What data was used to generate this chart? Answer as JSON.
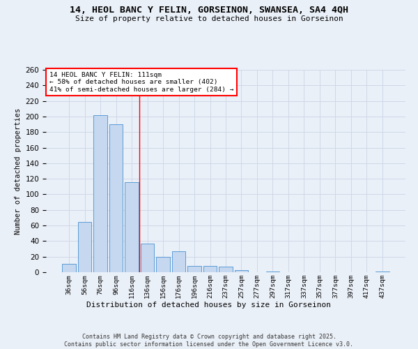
{
  "title_line1": "14, HEOL BANC Y FELIN, GORSEINON, SWANSEA, SA4 4QH",
  "title_line2": "Size of property relative to detached houses in Gorseinon",
  "xlabel": "Distribution of detached houses by size in Gorseinon",
  "ylabel": "Number of detached properties",
  "categories": [
    "36sqm",
    "56sqm",
    "76sqm",
    "96sqm",
    "116sqm",
    "136sqm",
    "156sqm",
    "176sqm",
    "196sqm",
    "216sqm",
    "237sqm",
    "257sqm",
    "277sqm",
    "297sqm",
    "317sqm",
    "337sqm",
    "357sqm",
    "377sqm",
    "397sqm",
    "417sqm",
    "437sqm"
  ],
  "values": [
    11,
    65,
    202,
    190,
    116,
    37,
    20,
    27,
    8,
    8,
    7,
    3,
    0,
    1,
    0,
    0,
    0,
    0,
    0,
    0,
    1
  ],
  "bar_color": "#c5d8f0",
  "bar_edge_color": "#5b9bd5",
  "grid_color": "#d0d8e8",
  "background_color": "#eaf0f8",
  "vline_x": 4.5,
  "vline_color": "red",
  "annotation_text": "14 HEOL BANC Y FELIN: 111sqm\n← 58% of detached houses are smaller (402)\n41% of semi-detached houses are larger (284) →",
  "annotation_box_color": "white",
  "annotation_box_edge": "red",
  "ylim": [
    0,
    260
  ],
  "yticks": [
    0,
    20,
    40,
    60,
    80,
    100,
    120,
    140,
    160,
    180,
    200,
    220,
    240,
    260
  ],
  "footnote": "Contains HM Land Registry data © Crown copyright and database right 2025.\nContains public sector information licensed under the Open Government Licence v3.0."
}
